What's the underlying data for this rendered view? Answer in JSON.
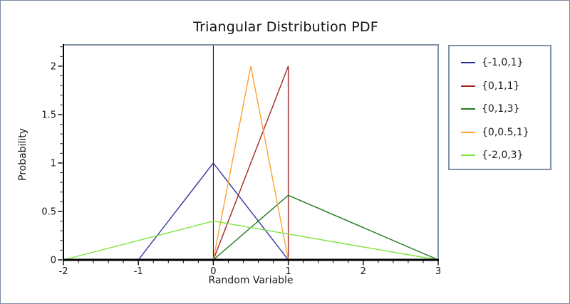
{
  "chart_data": {
    "type": "line",
    "title": "Triangular Distribution PDF",
    "xlabel": "Random Variable",
    "ylabel": "Probability",
    "xlim": [
      -2,
      3
    ],
    "ylim": [
      0,
      2.22
    ],
    "x_major_ticks": {
      "values": [
        -2,
        -1,
        0,
        1,
        2,
        3
      ],
      "labels": [
        "-2",
        "-1",
        "0",
        "1",
        "2",
        "3"
      ]
    },
    "x_minor_tick_step": 0.2,
    "y_major_ticks": {
      "values": [
        0,
        0.5,
        1,
        1.5,
        2
      ],
      "labels": [
        "0",
        "0.5",
        "1",
        "1.5",
        "2"
      ]
    },
    "y_minor_tick_step": 0.1,
    "grid": false,
    "legend_position": "outside-top-right",
    "zero_axis_line_x": 0,
    "series": [
      {
        "name": "{-1,0,1}",
        "color": "#32329f",
        "points": [
          [
            -1,
            0
          ],
          [
            0,
            1
          ],
          [
            1,
            0
          ]
        ]
      },
      {
        "name": "{0,1,1}",
        "color": "#a02525",
        "points": [
          [
            0,
            0
          ],
          [
            1,
            2
          ],
          [
            1,
            0
          ]
        ]
      },
      {
        "name": "{0,1,3}",
        "color": "#1e7a1e",
        "points": [
          [
            0,
            0
          ],
          [
            1,
            0.6667
          ],
          [
            3,
            0
          ]
        ]
      },
      {
        "name": "{0,0.5,1}",
        "color": "#ffa02e",
        "points": [
          [
            0,
            0
          ],
          [
            0.5,
            2
          ],
          [
            1,
            0
          ]
        ]
      },
      {
        "name": "{-2,0,3}",
        "color": "#7ce43a",
        "points": [
          [
            -2,
            0
          ],
          [
            0,
            0.4
          ],
          [
            3,
            0
          ]
        ]
      }
    ]
  },
  "colors": {
    "frame": "#8090a5",
    "axis": "#000000",
    "tick_text": "#1a1a1a",
    "background": "#ffffff",
    "outer_border": "#7d8c9f"
  }
}
